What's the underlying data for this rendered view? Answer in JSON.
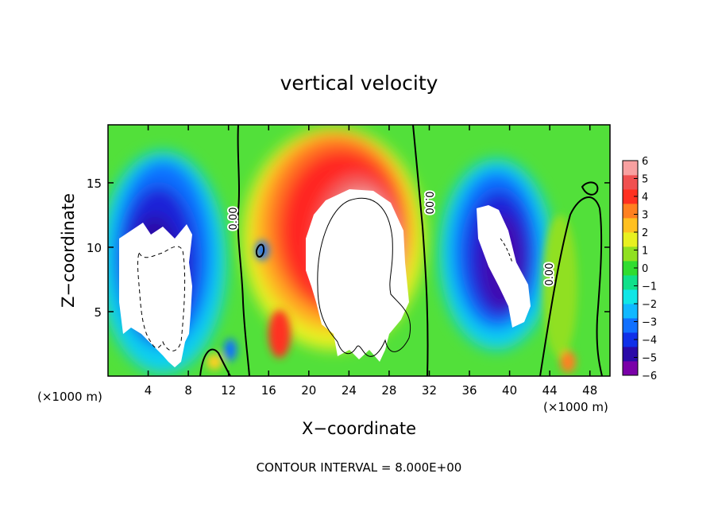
{
  "chart_data": {
    "type": "heatmap",
    "title": "vertical velocity",
    "xlabel": "X−coordinate",
    "ylabel": "Z−coordinate",
    "x_unit": "(×1000 m)",
    "x_unit_right": "(×1000 m)",
    "xlim": [
      0,
      50
    ],
    "ylim": [
      0,
      19.5
    ],
    "x_ticks": [
      4,
      8,
      12,
      16,
      20,
      24,
      28,
      32,
      36,
      40,
      44,
      48
    ],
    "y_ticks": [
      5,
      10,
      15
    ],
    "colorbar": {
      "ticks": [
        "6",
        "5",
        "4",
        "3",
        "2",
        "1",
        "0",
        "−1",
        "−2",
        "−3",
        "−4",
        "−5",
        "−6"
      ],
      "range": [
        -6,
        6
      ],
      "colors": [
        "#7a00a8",
        "#2a0aa8",
        "#1030e8",
        "#1070ff",
        "#10b8ff",
        "#10e6e6",
        "#10e08a",
        "#30dc30",
        "#90e020",
        "#e8f020",
        "#ffc020",
        "#ff8020",
        "#ff3020",
        "#f05050",
        "#f8a0a0"
      ]
    },
    "contour_labels": [
      "0.00",
      "0.00",
      "0.00"
    ],
    "features": [
      {
        "kind": "updraft",
        "x_range": [
          16,
          32
        ],
        "z_range": [
          1,
          17
        ],
        "max_region_z": [
          2,
          14
        ]
      },
      {
        "kind": "downdraft",
        "x_range": [
          0,
          10
        ],
        "z_range": [
          1,
          14
        ]
      },
      {
        "kind": "downdraft",
        "x_range": [
          34,
          44
        ],
        "z_range": [
          2,
          15
        ]
      }
    ],
    "footer": "CONTOUR INTERVAL = 8.000E+00"
  }
}
